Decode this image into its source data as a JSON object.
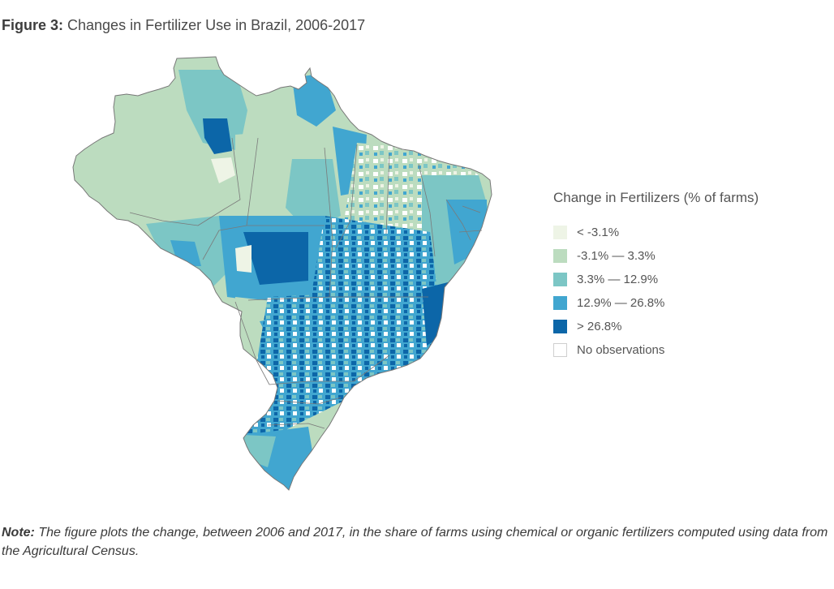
{
  "figure": {
    "label": "Figure 3:",
    "title": " Changes in Fertilizer Use in Brazil, 2006-2017"
  },
  "legend": {
    "title": "Change in Fertilizers (% of farms)",
    "items": [
      {
        "label": "< -3.1%",
        "color": "#eef4e6"
      },
      {
        "label": "-3.1% — 3.3%",
        "color": "#bcdcbf"
      },
      {
        "label": "3.3% — 12.9%",
        "color": "#7cc6c5"
      },
      {
        "label": "12.9% — 26.8%",
        "color": "#41a6d0"
      },
      {
        "label": "> 26.8%",
        "color": "#0c66a8"
      },
      {
        "label": "No observations",
        "color": "#ffffff"
      }
    ]
  },
  "note": {
    "label": "Note:",
    "text": " The figure plots the change, between 2006 and 2017, in the share of farms using chemical or organic fertilizers computed using data from the Agricultural Census."
  }
}
